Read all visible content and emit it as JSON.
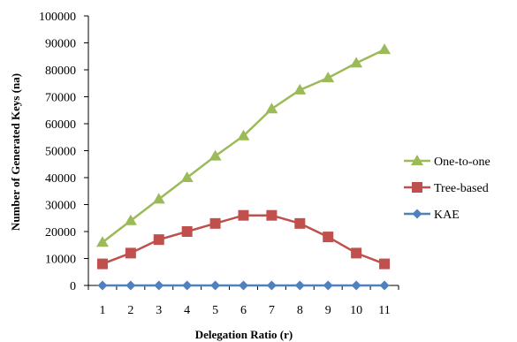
{
  "chart_data": {
    "type": "line",
    "categories": [
      "1",
      "2",
      "3",
      "4",
      "5",
      "6",
      "7",
      "8",
      "9",
      "10",
      "11"
    ],
    "series": [
      {
        "name": "One-to-one",
        "color": "#9bbb59",
        "marker": "triangle",
        "values": [
          16000,
          24000,
          32000,
          40000,
          48000,
          55500,
          65500,
          72500,
          77000,
          82500,
          87500
        ]
      },
      {
        "name": "Tree-based",
        "color": "#c0504d",
        "marker": "square",
        "values": [
          8000,
          12000,
          17000,
          20000,
          23000,
          26000,
          26000,
          23000,
          18000,
          12000,
          8000
        ]
      },
      {
        "name": "KAE",
        "color": "#4f81bd",
        "marker": "diamond",
        "values": [
          0,
          0,
          0,
          0,
          0,
          0,
          0,
          0,
          0,
          0,
          0
        ]
      }
    ],
    "xlabel": "Delegation Ratio (r)",
    "ylabel": "Number of Generated Keys (na)",
    "ylim": [
      0,
      100000
    ],
    "yticks": [
      0,
      10000,
      20000,
      30000,
      40000,
      50000,
      60000,
      70000,
      80000,
      90000,
      100000
    ],
    "ytick_labels": [
      "0",
      "10000",
      "20000",
      "30000",
      "40000",
      "50000",
      "60000",
      "70000",
      "80000",
      "90000",
      "100000"
    ],
    "grid": false,
    "legend_position": "right"
  }
}
